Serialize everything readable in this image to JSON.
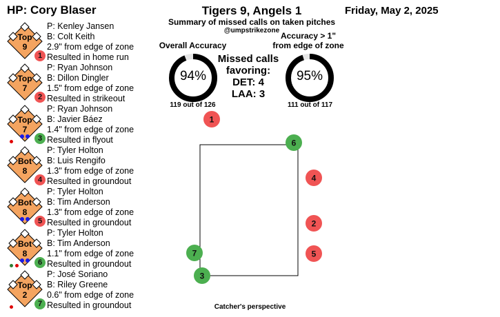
{
  "header": {
    "umpire": "HP: Cory Blaser",
    "score": "Tigers 9, Angels 1",
    "date": "Friday, May 2, 2025",
    "subtitle": "Summary of missed calls on taken pitches",
    "handle": "@umpstrikezone"
  },
  "overall": {
    "title": "Overall Accuracy",
    "pct": "94%",
    "fraction": 0.94,
    "note": "119 out of 126"
  },
  "accuracy_1in": {
    "title_line1": "Accuracy > 1\"",
    "title_line2": "from edge of zone",
    "pct": "95%",
    "fraction": 0.95,
    "note": "111 out of 117"
  },
  "missed": {
    "line1": "Missed calls",
    "line2": "favoring:",
    "line3": "DET: 4",
    "line4": "LAA: 3"
  },
  "entries": [
    {
      "half": "Top",
      "inning": "9",
      "num": "1",
      "badge_color": "#f05454",
      "pitcher": "P: Kenley Jansen",
      "batter": "B: Colt Keith",
      "distance": "2.9\" from edge of zone",
      "result": "Resulted in home run",
      "bases": {
        "first": false,
        "second": false,
        "third": false
      },
      "outs": 0,
      "runners": []
    },
    {
      "half": "Top",
      "inning": "7",
      "num": "2",
      "badge_color": "#f05454",
      "pitcher": "P: Ryan Johnson",
      "batter": "B: Dillon Dingler",
      "distance": "1.5\" from edge of zone",
      "result": "Resulted in strikeout",
      "bases": {
        "first": false,
        "second": false,
        "third": false
      },
      "outs": 0,
      "runners": []
    },
    {
      "half": "Top",
      "inning": "7",
      "num": "3",
      "badge_color": "#4caf50",
      "pitcher": "P: Ryan Johnson",
      "batter": "B: Javier Báez",
      "distance": "1.4\" from edge of zone",
      "result": "Resulted in flyout",
      "bases": {
        "first": false,
        "second": false,
        "third": false
      },
      "outs": 2,
      "runners": [
        "#e00000"
      ]
    },
    {
      "half": "Bot",
      "inning": "8",
      "num": "4",
      "badge_color": "#f05454",
      "pitcher": "P: Tyler Holton",
      "batter": "B: Luis Rengifo",
      "distance": "1.3\" from edge of zone",
      "result": "Resulted in groundout",
      "bases": {
        "first": false,
        "second": false,
        "third": false
      },
      "outs": 0,
      "runners": []
    },
    {
      "half": "Bot",
      "inning": "8",
      "num": "5",
      "badge_color": "#f05454",
      "pitcher": "P: Tyler Holton",
      "batter": "B: Tim Anderson",
      "distance": "1.3\" from edge of zone",
      "result": "Resulted in groundout",
      "bases": {
        "first": false,
        "second": false,
        "third": false
      },
      "outs": 2,
      "runners": []
    },
    {
      "half": "Bot",
      "inning": "8",
      "num": "6",
      "badge_color": "#4caf50",
      "pitcher": "P: Tyler Holton",
      "batter": "B: Tim Anderson",
      "distance": "1.1\" from edge of zone",
      "result": "Resulted in groundout",
      "bases": {
        "first": false,
        "second": false,
        "third": false
      },
      "outs": 2,
      "runners": [
        "#2e7d32",
        "#e00000"
      ]
    },
    {
      "half": "Top",
      "inning": "2",
      "num": "7",
      "badge_color": "#4caf50",
      "pitcher": "P: José Soriano",
      "batter": "B: Riley Greene",
      "distance": "0.6\" from edge of zone",
      "result": "Resulted in groundout",
      "bases": {
        "first": false,
        "second": false,
        "third": false
      },
      "outs": 0,
      "runners": [
        "#e00000"
      ]
    }
  ],
  "zone_pitches": [
    {
      "num": "1",
      "color": "#f05454"
    },
    {
      "num": "6",
      "color": "#4caf50"
    },
    {
      "num": "4",
      "color": "#f05454"
    },
    {
      "num": "2",
      "color": "#f05454"
    },
    {
      "num": "5",
      "color": "#f05454"
    },
    {
      "num": "7",
      "color": "#4caf50"
    },
    {
      "num": "3",
      "color": "#4caf50"
    }
  ],
  "footer": "Catcher's perspective"
}
